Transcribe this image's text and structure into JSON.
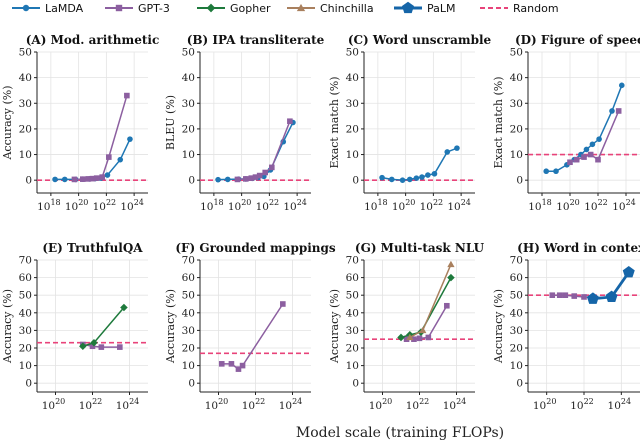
{
  "legend": [
    {
      "name": "LaMDA",
      "color": "#1f77b4",
      "marker": "circle"
    },
    {
      "name": "GPT-3",
      "color": "#8c5fa0",
      "marker": "square"
    },
    {
      "name": "Gopher",
      "color": "#1e7a3c",
      "marker": "diamond"
    },
    {
      "name": "Chinchilla",
      "color": "#a9805e",
      "marker": "triangle"
    },
    {
      "name": "PaLM",
      "color": "#1565a8",
      "marker": "pentagon"
    },
    {
      "name": "Random",
      "color": "#e8437a",
      "marker": "dashed-line"
    }
  ],
  "x_axis_label": "Model scale (training FLOPs)",
  "chart_data": [
    {
      "type": "line",
      "title": "(A) Mod. arithmetic",
      "ylabel": "Accuracy (%)",
      "log_x": true,
      "xlim": [
        1e+17,
        1e+25
      ],
      "ylim": [
        -5,
        50
      ],
      "xticks": [
        "10^18",
        "10^20",
        "10^22",
        "10^24"
      ],
      "yticks": [
        0,
        10,
        20,
        30,
        40,
        50
      ],
      "random": 0,
      "series": [
        {
          "name": "LaMDA",
          "x": [
            2e+18,
            1e+19,
            6e+19,
            2e+20,
            6e+20,
            1.5e+21,
            4e+21,
            1.2e+22,
            1e+23,
            5e+23
          ],
          "y": [
            0.3,
            0.3,
            0.3,
            0.4,
            0.5,
            0.6,
            0.8,
            2,
            8,
            16
          ]
        },
        {
          "name": "GPT-3",
          "x": [
            5e+19,
            2e+20,
            5e+20,
            1e+21,
            2e+21,
            5e+21,
            1.5e+22,
            3e+23
          ],
          "y": [
            0.3,
            0.4,
            0.5,
            0.6,
            0.8,
            1.2,
            9,
            33
          ]
        }
      ]
    },
    {
      "type": "line",
      "title": "(B) IPA transliterate",
      "ylabel": "BLEU (%)",
      "log_x": true,
      "xlim": [
        1e+17,
        1e+25
      ],
      "ylim": [
        -5,
        50
      ],
      "xticks": [
        "10^18",
        "10^20",
        "10^22",
        "10^24"
      ],
      "yticks": [
        0,
        10,
        20,
        30,
        40,
        50
      ],
      "random": 0,
      "series": [
        {
          "name": "LaMDA",
          "x": [
            2e+18,
            1e+19,
            6e+19,
            2e+20,
            6e+20,
            1.5e+21,
            4e+21,
            1.2e+22,
            1e+23,
            5e+23
          ],
          "y": [
            0.2,
            0.3,
            0.4,
            0.5,
            0.7,
            1,
            1.5,
            4,
            15,
            22.5
          ]
        },
        {
          "name": "GPT-3",
          "x": [
            5e+19,
            2e+20,
            5e+20,
            1e+21,
            2e+21,
            5e+21,
            1.5e+22,
            3e+23
          ],
          "y": [
            0.3,
            0.5,
            0.8,
            1.2,
            1.8,
            3,
            5,
            23
          ]
        }
      ]
    },
    {
      "type": "line",
      "title": "(C) Word unscramble",
      "ylabel": "Exact match (%)",
      "log_x": true,
      "xlim": [
        1e+17,
        1e+25
      ],
      "ylim": [
        -5,
        50
      ],
      "xticks": [
        "10^18",
        "10^20",
        "10^22",
        "10^24"
      ],
      "yticks": [
        0,
        10,
        20,
        30,
        40,
        50
      ],
      "random": 0,
      "series": [
        {
          "name": "LaMDA",
          "x": [
            2e+18,
            1e+19,
            6e+19,
            2e+20,
            6e+20,
            1.5e+21,
            4e+21,
            1.2e+22,
            1e+23,
            5e+23
          ],
          "y": [
            1,
            0.3,
            0,
            0.3,
            0.8,
            1.2,
            2,
            2.5,
            11,
            12.5
          ]
        }
      ]
    },
    {
      "type": "line",
      "title": "(D) Figure of speech",
      "ylabel": "Exact match (%)",
      "log_x": true,
      "xlim": [
        1e+17,
        1e+25
      ],
      "ylim": [
        -5,
        50
      ],
      "xticks": [
        "10^18",
        "10^20",
        "10^22",
        "10^24"
      ],
      "yticks": [
        0,
        10,
        20,
        30,
        40,
        50
      ],
      "random": 10,
      "series": [
        {
          "name": "LaMDA",
          "x": [
            2e+18,
            1e+19,
            6e+19,
            2e+20,
            6e+20,
            1.5e+21,
            4e+21,
            1.2e+22,
            1e+23,
            5e+23
          ],
          "y": [
            3.5,
            3.5,
            6,
            8,
            10,
            12,
            14,
            16,
            27,
            37
          ]
        },
        {
          "name": "GPT-3",
          "x": [
            1e+20,
            3e+20,
            1e+21,
            3e+21,
            1e+22,
            3e+23
          ],
          "y": [
            7,
            8,
            9,
            10,
            8,
            27
          ]
        }
      ]
    },
    {
      "type": "line",
      "title": "(E) TruthfulQA",
      "ylabel": "Accuracy (%)",
      "log_x": true,
      "xlim": [
        1e+19,
        1e+25
      ],
      "ylim": [
        -5,
        70
      ],
      "xticks": [
        "10^20",
        "10^22",
        "10^24"
      ],
      "yticks": [
        0,
        10,
        20,
        30,
        40,
        50,
        60,
        70
      ],
      "random": 23,
      "series": [
        {
          "name": "GPT-3",
          "x": [
            3e+21,
            1e+22,
            3e+22,
            3e+23
          ],
          "y": [
            22,
            21,
            20.5,
            20.5
          ]
        },
        {
          "name": "Gopher",
          "x": [
            3e+21,
            1.2e+22,
            5e+23
          ],
          "y": [
            21,
            23,
            43
          ]
        }
      ]
    },
    {
      "type": "line",
      "title": "(F) Grounded mappings",
      "ylabel": "Accuracy (%)",
      "log_x": true,
      "xlim": [
        1e+19,
        1e+25
      ],
      "ylim": [
        -5,
        70
      ],
      "xticks": [
        "10^20",
        "10^22",
        "10^24"
      ],
      "yticks": [
        0,
        10,
        20,
        30,
        40,
        50,
        60,
        70
      ],
      "random": 17,
      "series": [
        {
          "name": "GPT-3",
          "x": [
            1.5e+20,
            5e+20,
            1.2e+21,
            2e+21,
            3e+23
          ],
          "y": [
            11,
            11,
            8,
            10,
            45
          ]
        }
      ]
    },
    {
      "type": "line",
      "title": "(G) Multi-task NLU",
      "ylabel": "Accuracy (%)",
      "log_x": true,
      "xlim": [
        1e+19,
        1e+25
      ],
      "ylim": [
        -5,
        70
      ],
      "xticks": [
        "10^20",
        "10^22",
        "10^24"
      ],
      "yticks": [
        0,
        10,
        20,
        30,
        40,
        50,
        60,
        70
      ],
      "random": 25,
      "series": [
        {
          "name": "GPT-3",
          "x": [
            2e+21,
            5e+21,
            1e+22,
            3e+22,
            3e+23
          ],
          "y": [
            25,
            25,
            25.5,
            26,
            44
          ]
        },
        {
          "name": "Gopher",
          "x": [
            1e+21,
            3e+21,
            1.2e+22,
            5e+23
          ],
          "y": [
            26,
            27.5,
            29,
            60
          ]
        },
        {
          "name": "Chinchilla",
          "x": [
            3e+21,
            1.5e+22,
            5e+23
          ],
          "y": [
            26,
            30,
            67.5
          ]
        }
      ]
    },
    {
      "type": "line",
      "title": "(H) Word in context",
      "ylabel": "Accuracy (%)",
      "log_x": true,
      "xlim": [
        1e+19,
        1e+25
      ],
      "ylim": [
        -5,
        70
      ],
      "xticks": [
        "10^20",
        "10^22",
        "10^24"
      ],
      "yticks": [
        0,
        10,
        20,
        30,
        40,
        50,
        60,
        70
      ],
      "random": 50,
      "series": [
        {
          "name": "GPT-3",
          "x": [
            2e+20,
            5e+20,
            1e+21,
            3e+21,
            1e+22,
            3e+22,
            3e+23
          ],
          "y": [
            50,
            50,
            50,
            49.5,
            49,
            48.5,
            49
          ]
        },
        {
          "name": "PaLM",
          "x": [
            3e+22,
            3e+23,
            2.5e+24
          ],
          "y": [
            48,
            49,
            63
          ]
        }
      ]
    }
  ]
}
